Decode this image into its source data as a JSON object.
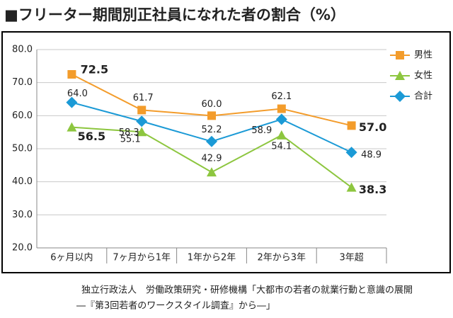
{
  "chart_data": {
    "type": "line",
    "title": "■フリーター期間別正社員になれた者の割合（%）",
    "categories": [
      "6ヶ月以内",
      "7ヶ月から1年",
      "1年から2年",
      "2年から3年",
      "3年超"
    ],
    "series": [
      {
        "name": "男性",
        "color": "#f39c2b",
        "marker": "square",
        "values": [
          72.5,
          61.7,
          60.0,
          62.1,
          57.0
        ],
        "value_labels": [
          "72.5",
          "61.7",
          "60.0",
          "62.1",
          "57.0"
        ]
      },
      {
        "name": "女性",
        "color": "#8dc63f",
        "marker": "triangle",
        "values": [
          56.5,
          55.1,
          42.9,
          54.1,
          38.3
        ],
        "value_labels": [
          "56.5",
          "55.1",
          "42.9",
          "54.1",
          "38.3"
        ]
      },
      {
        "name": "合計",
        "color": "#1b9ad6",
        "marker": "diamond",
        "values": [
          64.0,
          58.3,
          52.2,
          58.9,
          48.9
        ],
        "value_labels": [
          "64.0",
          "58.3",
          "52.2",
          "58.9",
          "48.9"
        ]
      }
    ],
    "ylim": [
      20,
      80
    ],
    "yticks": [
      {
        "value": 20,
        "label": "20.0"
      },
      {
        "value": 30,
        "label": "30.0"
      },
      {
        "value": 40,
        "label": "40.0"
      },
      {
        "value": 50,
        "label": "50.0"
      },
      {
        "value": 60,
        "label": "60.0"
      },
      {
        "value": 70,
        "label": "70.0"
      },
      {
        "value": 80,
        "label": "80.0"
      }
    ],
    "grid": true,
    "legend": "top-right",
    "source": [
      "独立行政法人　労働政策研究・研修機構「大都市の若者の就業行動と意識の展開",
      "―『第3回若者のワークスタイル調査』から―」"
    ]
  }
}
